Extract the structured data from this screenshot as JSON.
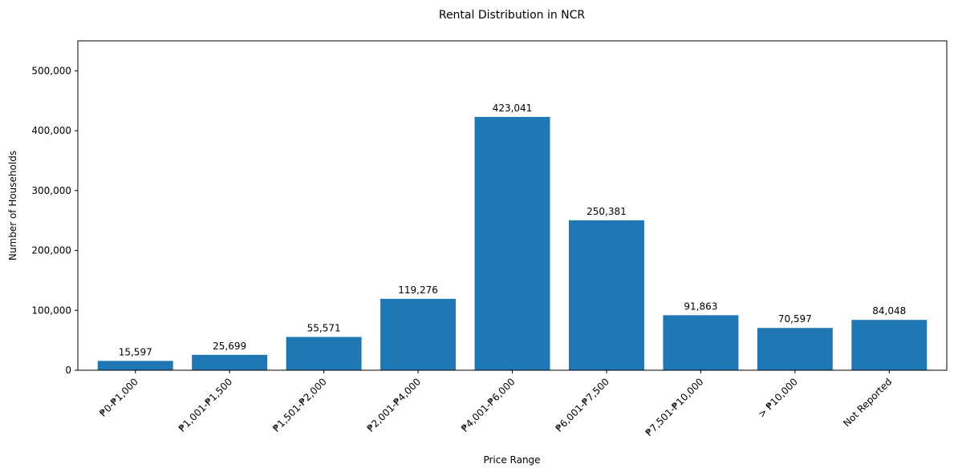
{
  "chart_data": {
    "type": "bar",
    "title": "Rental Distribution in NCR",
    "xlabel": "Price Range",
    "ylabel": "Number of Households",
    "categories": [
      "₱0-₱1,000",
      "₱1,001-₱1,500",
      "₱1,501-₱2,000",
      "₱2,001-₱4,000",
      "₱4,001-₱6,000",
      "₱6,001-₱7,500",
      "₱7,501-₱10,000",
      "> ₱10,000",
      "Not Reported"
    ],
    "values": [
      15597,
      25699,
      55571,
      119276,
      423041,
      250381,
      91863,
      70597,
      84048
    ],
    "value_labels": [
      "15,597",
      "25,699",
      "55,571",
      "119,276",
      "423,041",
      "250,381",
      "91,863",
      "70,597",
      "84,048"
    ],
    "ylim": [
      0,
      550000
    ],
    "yticks": [
      0,
      100000,
      200000,
      300000,
      400000,
      500000
    ],
    "ytick_labels": [
      "0",
      "100,000",
      "200,000",
      "300,000",
      "400,000",
      "500,000"
    ],
    "grid": false,
    "bar_color": "#1f77b4"
  }
}
